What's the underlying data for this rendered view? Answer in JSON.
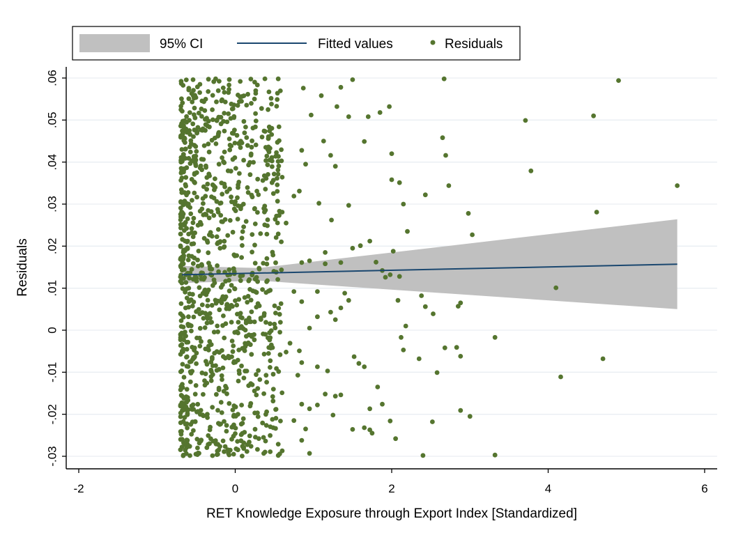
{
  "chart_data": {
    "type": "scatter",
    "title": "",
    "xlabel": "RET Knowledge Exposure through Export Index [Standardized]",
    "ylabel": "Residuals",
    "xlim": [
      -2,
      6
    ],
    "ylim": [
      -0.03,
      0.06
    ],
    "x_ticks": [
      -2,
      0,
      2,
      4,
      6
    ],
    "x_tick_labels": [
      "-2",
      "0",
      "2",
      "4",
      "6"
    ],
    "y_ticks": [
      -0.03,
      -0.02,
      -0.01,
      0,
      0.01,
      0.02,
      0.03,
      0.04,
      0.05,
      0.06
    ],
    "y_tick_labels": [
      "-.03",
      "-.02",
      "-.01",
      "0",
      ".01",
      ".02",
      ".03",
      ".04",
      ".05",
      ".06"
    ],
    "grid": true,
    "legend_position": "top",
    "legend": [
      {
        "label": "95% CI",
        "type": "area",
        "color": "#c0c0c0"
      },
      {
        "label": "Fitted values",
        "type": "line",
        "color": "#1a476f"
      },
      {
        "label": "Residuals",
        "type": "scatter",
        "color": "#55752f"
      }
    ],
    "fitted_line": {
      "x": [
        -0.68,
        5.65
      ],
      "y": [
        0.0132,
        0.0157
      ]
    },
    "ci_band": {
      "x": [
        -0.68,
        0.3,
        5.65
      ],
      "upper": [
        0.0153,
        0.0148,
        0.0264
      ],
      "lower": [
        0.0112,
        0.0118,
        0.005
      ]
    },
    "series": [
      {
        "name": "Residuals",
        "points": [
          [
            4.9,
            0.0594
          ],
          [
            2.67,
            0.0598
          ],
          [
            0.55,
            0.0598
          ],
          [
            3.71,
            0.0499
          ],
          [
            4.58,
            0.051
          ],
          [
            3.78,
            0.0379
          ],
          [
            5.65,
            0.0344
          ],
          [
            4.62,
            0.0281
          ],
          [
            4.1,
            0.0101
          ],
          [
            4.7,
            -0.0068
          ],
          [
            4.16,
            -0.0111
          ],
          [
            3.32,
            -0.0297
          ],
          [
            2.4,
            -0.0298
          ],
          [
            2.98,
            0.0278
          ],
          [
            3.03,
            0.0227
          ],
          [
            2.73,
            0.0344
          ],
          [
            2.65,
            0.0458
          ],
          [
            2.69,
            0.0416
          ],
          [
            2.43,
            0.0322
          ],
          [
            2.2,
            0.0235
          ],
          [
            2.15,
            0.03
          ],
          [
            2.1,
            0.0351
          ],
          [
            2.0,
            0.0358
          ],
          [
            2.0,
            0.042
          ],
          [
            1.97,
            0.0532
          ],
          [
            1.85,
            0.0518
          ],
          [
            1.7,
            0.0508
          ],
          [
            1.65,
            0.0449
          ],
          [
            1.5,
            0.0596
          ],
          [
            1.45,
            0.0508
          ],
          [
            1.35,
            0.0578
          ],
          [
            1.3,
            0.0532
          ],
          [
            1.1,
            0.0558
          ],
          [
            0.87,
            0.0576
          ],
          [
            0.97,
            0.0512
          ],
          [
            1.13,
            0.045
          ],
          [
            1.22,
            0.0416
          ],
          [
            1.28,
            0.039
          ],
          [
            0.9,
            0.0395
          ],
          [
            0.85,
            0.0428
          ],
          [
            0.6,
            0.0364
          ],
          [
            1.07,
            0.0302
          ],
          [
            1.23,
            0.0262
          ],
          [
            1.45,
            0.0297
          ],
          [
            1.5,
            0.0195
          ],
          [
            1.72,
            0.0212
          ],
          [
            1.8,
            0.0162
          ],
          [
            1.6,
            0.0201
          ],
          [
            2.02,
            0.0188
          ],
          [
            2.1,
            0.0128
          ],
          [
            2.38,
            0.0082
          ],
          [
            2.43,
            0.0056
          ],
          [
            2.53,
            0.0039
          ],
          [
            2.85,
            0.0057
          ],
          [
            2.88,
            0.0065
          ],
          [
            2.08,
            0.0071
          ],
          [
            2.18,
            0.001
          ],
          [
            2.12,
            -0.0017
          ],
          [
            2.15,
            -0.0047
          ],
          [
            2.35,
            -0.0068
          ],
          [
            2.58,
            -0.0101
          ],
          [
            2.68,
            -0.0042
          ],
          [
            2.83,
            -0.0041
          ],
          [
            2.88,
            -0.0062
          ],
          [
            3.32,
            -0.0017
          ],
          [
            2.88,
            -0.0191
          ],
          [
            3.0,
            -0.0205
          ],
          [
            2.52,
            -0.0218
          ],
          [
            1.98,
            -0.0216
          ],
          [
            2.05,
            -0.0258
          ],
          [
            1.82,
            -0.0135
          ],
          [
            1.88,
            -0.0176
          ],
          [
            1.72,
            -0.0237
          ],
          [
            1.75,
            -0.0245
          ],
          [
            1.65,
            -0.0232
          ],
          [
            1.72,
            -0.0187
          ],
          [
            1.5,
            -0.0236
          ],
          [
            1.58,
            -0.0079
          ],
          [
            1.65,
            -0.0087
          ],
          [
            1.52,
            -0.0063
          ],
          [
            1.28,
            -0.0157
          ],
          [
            1.35,
            -0.0154
          ],
          [
            1.25,
            -0.0202
          ],
          [
            1.15,
            -0.0152
          ],
          [
            1.05,
            -0.0178
          ],
          [
            0.85,
            -0.0176
          ],
          [
            0.75,
            -0.0215
          ],
          [
            0.95,
            -0.0187
          ],
          [
            0.9,
            -0.0235
          ],
          [
            0.85,
            -0.0262
          ],
          [
            0.95,
            -0.0293
          ],
          [
            0.55,
            -0.0298
          ],
          [
            0.6,
            -0.0287
          ],
          [
            1.18,
            -0.0097
          ],
          [
            1.05,
            -0.0087
          ],
          [
            0.8,
            -0.0107
          ],
          [
            0.65,
            -0.0052
          ],
          [
            0.7,
            -0.0031
          ],
          [
            0.82,
            -0.0049
          ],
          [
            0.85,
            -0.0077
          ],
          [
            0.95,
            0.0005
          ],
          [
            1.05,
            0.0032
          ],
          [
            1.22,
            0.0043
          ],
          [
            1.35,
            0.0053
          ],
          [
            1.28,
            0.0025
          ],
          [
            1.45,
            0.0071
          ],
          [
            1.4,
            0.0088
          ],
          [
            0.85,
            0.0068
          ],
          [
            0.75,
            0.0092
          ],
          [
            1.05,
            0.0092
          ],
          [
            1.15,
            0.0158
          ],
          [
            1.35,
            0.0161
          ],
          [
            1.15,
            0.0185
          ],
          [
            0.95,
            0.0165
          ],
          [
            0.85,
            0.0161
          ],
          [
            0.82,
            0.0331
          ],
          [
            0.75,
            0.0319
          ],
          [
            0.6,
            0.0281
          ],
          [
            0.65,
            0.0255
          ],
          [
            0.55,
            0.0229
          ],
          [
            1.88,
            0.0142
          ],
          [
            1.98,
            0.0132
          ],
          [
            1.92,
            0.0126
          ]
        ]
      }
    ],
    "dense_cluster": {
      "x_range": [
        -0.7,
        0.6
      ],
      "y_range": [
        -0.03,
        0.06
      ],
      "count": 1050
    }
  }
}
